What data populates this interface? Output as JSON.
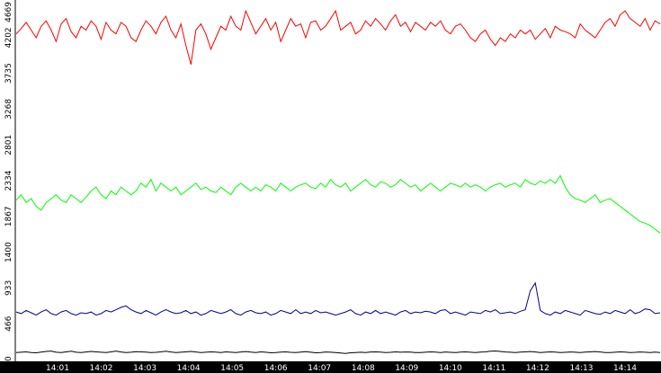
{
  "chart_data": {
    "type": "line",
    "title": "",
    "xlabel": "",
    "ylabel": "",
    "ylim": [
      0,
      4669
    ],
    "y_ticks": [
      "0",
      "466",
      "933",
      "1400",
      "1867",
      "2334",
      "2801",
      "3268",
      "3735",
      "4202",
      "4669"
    ],
    "x_ticks": [
      "14:01",
      "14:02",
      "14:03",
      "14:04",
      "14:05",
      "14:06",
      "14:07",
      "14:08",
      "14:09",
      "14:10",
      "14:11",
      "14:12",
      "14:13",
      "14:14"
    ],
    "grid": false,
    "legend": "none",
    "axis_bar_color": "#000000",
    "axis_text_color": "#ffffff",
    "series": [
      {
        "color": "#ff0000",
        "values": [
          4250,
          4320,
          4400,
          4300,
          4200,
          4350,
          4420,
          4300,
          4150,
          4380,
          4450,
          4280,
          4200,
          4350,
          4300,
          4420,
          4350,
          4180,
          4400,
          4300,
          4250,
          4400,
          4350,
          4200,
          4150,
          4300,
          4420,
          4350,
          4250,
          4400,
          4480,
          4300,
          4200,
          4380,
          4100,
          3850,
          4300,
          4380,
          4250,
          4050,
          4200,
          4350,
          4300,
          4480,
          4350,
          4300,
          4550,
          4400,
          4250,
          4350,
          4450,
          4300,
          4400,
          4150,
          4300,
          4450,
          4350,
          4380,
          4200,
          4400,
          4420,
          4300,
          4350,
          4450,
          4550,
          4300,
          4350,
          4400,
          4250,
          4300,
          4420,
          4350,
          4450,
          4380,
          4300,
          4420,
          4500,
          4350,
          4400,
          4280,
          4400,
          4350,
          4300,
          4400,
          4350,
          4420,
          4300,
          4250,
          4350,
          4380,
          4300,
          4200,
          4150,
          4250,
          4300,
          4180,
          4100,
          4200,
          4150,
          4250,
          4200,
          4300,
          4250,
          4300,
          4180,
          4250,
          4320,
          4200,
          4350,
          4300,
          4280,
          4250,
          4200,
          4380,
          4300,
          4250,
          4200,
          4300,
          4400,
          4450,
          4350,
          4500,
          4550,
          4450,
          4400,
          4350,
          4450,
          4300,
          4420,
          4380
        ]
      },
      {
        "color": "#00ff00",
        "values": [
          2080,
          2150,
          2050,
          2100,
          2000,
          1950,
          2050,
          2100,
          2150,
          2080,
          2050,
          2150,
          2100,
          2050,
          2120,
          2200,
          2250,
          2150,
          2100,
          2200,
          2150,
          2250,
          2200,
          2150,
          2200,
          2300,
          2250,
          2350,
          2200,
          2300,
          2250,
          2200,
          2250,
          2150,
          2200,
          2250,
          2300,
          2220,
          2250,
          2200,
          2180,
          2250,
          2200,
          2150,
          2250,
          2300,
          2250,
          2200,
          2250,
          2200,
          2280,
          2250,
          2200,
          2300,
          2250,
          2200,
          2250,
          2280,
          2300,
          2250,
          2230,
          2300,
          2250,
          2350,
          2280,
          2250,
          2300,
          2200,
          2250,
          2300,
          2350,
          2280,
          2250,
          2320,
          2300,
          2250,
          2280,
          2350,
          2300,
          2250,
          2280,
          2200,
          2250,
          2300,
          2250,
          2200,
          2250,
          2300,
          2280,
          2250,
          2300,
          2250,
          2280,
          2250,
          2200,
          2250,
          2280,
          2300,
          2250,
          2280,
          2300,
          2250,
          2350,
          2300,
          2280,
          2330,
          2300,
          2350,
          2300,
          2400,
          2250,
          2150,
          2100,
          2080,
          2050,
          2100,
          2150,
          2050,
          2080,
          2100,
          2050,
          2000,
          1950,
          1900,
          1850,
          1800,
          1780,
          1750,
          1700,
          1650
        ]
      },
      {
        "color": "#0000a0",
        "values": [
          620,
          600,
          640,
          610,
          580,
          620,
          650,
          600,
          580,
          620,
          640,
          600,
          580,
          610,
          600,
          620,
          580,
          600,
          640,
          620,
          650,
          680,
          700,
          650,
          620,
          600,
          640,
          610,
          580,
          620,
          650,
          620,
          600,
          610,
          640,
          600,
          620,
          580,
          600,
          640,
          620,
          600,
          620,
          650,
          600,
          580,
          620,
          640,
          610,
          600,
          620,
          580,
          600,
          640,
          620,
          600,
          650,
          600,
          620,
          600,
          640,
          610,
          620,
          600,
          580,
          600,
          620,
          650,
          600,
          580,
          620,
          600,
          640,
          600,
          620,
          600,
          580,
          620,
          640,
          600,
          620,
          610,
          630,
          620,
          600,
          640,
          650,
          600,
          620,
          600,
          580,
          620,
          610,
          600,
          640,
          620,
          650,
          600,
          610,
          620,
          600,
          630,
          650,
          900,
          1000,
          640,
          600,
          580,
          620,
          600,
          640,
          620,
          600,
          580,
          640,
          620,
          600,
          590,
          620,
          600,
          640,
          620,
          600,
          650,
          600,
          620,
          660,
          650,
          600,
          610
        ]
      },
      {
        "color": "#000000",
        "values": [
          90,
          95,
          100,
          92,
          88,
          96,
          105,
          110,
          95,
          90,
          100,
          108,
          95,
          90,
          98,
          105,
          100,
          95,
          92,
          100,
          110,
          98,
          90,
          95,
          102,
          100,
          96,
          90,
          94,
          100,
          108,
          98,
          92,
          95,
          100,
          105,
          98,
          90,
          95,
          100,
          96,
          92,
          100,
          95,
          90,
          98,
          104,
          96,
          92,
          100,
          95,
          88,
          90,
          96,
          100,
          94,
          90,
          96,
          102,
          95,
          88,
          92,
          98,
          95,
          90,
          85,
          80,
          88,
          92,
          95,
          90,
          98,
          100,
          96,
          92,
          94,
          100,
          95,
          98,
          96,
          92,
          90,
          95,
          100,
          96,
          92,
          98,
          94,
          90,
          96,
          100,
          95,
          92,
          96,
          100,
          108,
          112,
          105,
          98,
          95,
          90,
          96,
          100,
          104,
          98,
          92,
          95,
          100,
          96,
          90,
          94,
          98,
          95,
          90,
          96,
          100,
          104,
          98,
          92,
          90,
          95,
          100,
          96,
          92,
          94,
          98,
          95,
          90,
          96,
          92
        ]
      }
    ]
  }
}
